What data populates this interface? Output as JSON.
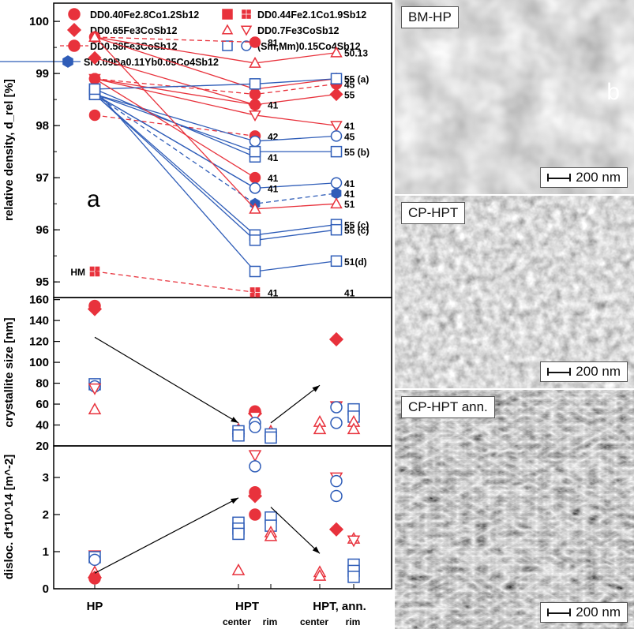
{
  "chart_data": [
    {
      "type": "line",
      "panel_label": "a",
      "ylabel": "relative density, d_rel [%]",
      "ylim": [
        94.7,
        100.35
      ],
      "yticks": [
        95,
        96,
        97,
        98,
        99,
        100
      ],
      "legend": [
        {
          "name": "DD0.40Fe2.8Co1.2Sb12",
          "color": "#e8323c",
          "marker": "circle",
          "dash": "solid",
          "filled": true
        },
        {
          "name": "DD0.65Fe3CoSb12",
          "color": "#e8323c",
          "marker": "diamond",
          "dash": "solid",
          "filled": true
        },
        {
          "name": "DD0.58Fe3CoSb12",
          "color": "#e8323c",
          "marker": "circle",
          "dash": "dashed",
          "filled": true
        },
        {
          "name": "Sr0.09Ba0.11Yb0.05Co4Sb12",
          "color": "#2f5db8",
          "marker": "hexagon",
          "dash": "solid",
          "filled": true
        },
        {
          "name": "DD0.44Fe2.1Co1.9Sb12",
          "color": "#e8323c",
          "marker": "square-quad",
          "dash": "solid",
          "filled": true
        },
        {
          "name": "DD0.7Fe3CoSb12",
          "color": "#e8323c",
          "marker": "triangle-up/down",
          "dash": "dashed",
          "filled": false
        },
        {
          "name": "(Sm,Mm)0.15Co4Sb12",
          "color": "#2f5db8",
          "marker": "square/circle",
          "dash": "solid",
          "filled": false
        }
      ],
      "series": [
        {
          "hp": 99.7,
          "center": 99.6,
          "rim": null,
          "color": "#e8323c",
          "dash": "dashed",
          "marker": "circle",
          "filled": true,
          "label": "81"
        },
        {
          "hp": 99.7,
          "center": 99.2,
          "rim": 99.4,
          "color": "#e8323c",
          "dash": "solid",
          "marker": "triangle-up",
          "filled": false,
          "label": "50.13"
        },
        {
          "hp": 99.7,
          "center": 98.7,
          "rim": 98.9,
          "color": "#e8323c",
          "dash": "solid",
          "marker": "triangle-up",
          "filled": false,
          "label": "55"
        },
        {
          "hp": 98.9,
          "center": 98.6,
          "rim": 98.8,
          "color": "#e8323c",
          "dash": "dashed",
          "marker": "circle",
          "filled": true,
          "label": "45"
        },
        {
          "hp": 99.3,
          "center": 98.4,
          "rim": 98.6,
          "color": "#e8323c",
          "dash": "solid",
          "marker": "diamond",
          "filled": true,
          "label": "55"
        },
        {
          "hp": 98.9,
          "center": 98.4,
          "rim": null,
          "color": "#e8323c",
          "dash": "solid",
          "marker": "circle",
          "filled": true,
          "label": "41"
        },
        {
          "hp": 98.2,
          "center": 97.8,
          "rim": null,
          "color": "#e8323c",
          "dash": "dashed",
          "marker": "circle",
          "filled": true,
          "label": "42"
        },
        {
          "hp": 98.9,
          "center": 98.2,
          "rim": 98.0,
          "color": "#e8323c",
          "dash": "solid",
          "marker": "triangle-down",
          "filled": false,
          "label": "41"
        },
        {
          "hp": 98.6,
          "center": 97.7,
          "rim": 97.8,
          "color": "#2f5db8",
          "dash": "solid",
          "marker": "circle",
          "filled": false,
          "label": "45"
        },
        {
          "hp": 98.7,
          "center": 97.4,
          "rim": null,
          "color": "#2f5db8",
          "dash": "solid",
          "marker": "square",
          "filled": false,
          "label": "41"
        },
        {
          "hp": 98.6,
          "center": 97.5,
          "rim": 97.5,
          "color": "#2f5db8",
          "dash": "solid",
          "marker": "square",
          "filled": false,
          "label": "55 (b)"
        },
        {
          "hp": 98.7,
          "center": 98.8,
          "rim": 98.9,
          "color": "#2f5db8",
          "dash": "solid",
          "marker": "square",
          "filled": false,
          "label": "55 (a)"
        },
        {
          "hp": 98.9,
          "center": 97.0,
          "rim": null,
          "color": "#e8323c",
          "dash": "solid",
          "marker": "circle",
          "filled": true,
          "label": "41"
        },
        {
          "hp": 98.6,
          "center": 96.8,
          "rim": 96.9,
          "color": "#2f5db8",
          "dash": "solid",
          "marker": "circle",
          "filled": false,
          "label": "41"
        },
        {
          "hp": 98.6,
          "center": 96.8,
          "rim": null,
          "color": "#2f5db8",
          "dash": "solid",
          "marker": "circle",
          "filled": false,
          "label": "41"
        },
        {
          "hp": 98.6,
          "center": 96.5,
          "rim": 96.7,
          "color": "#2f5db8",
          "dash": "dashed",
          "marker": "hexagon",
          "filled": true,
          "label": "41"
        },
        {
          "hp": 99.7,
          "center": 96.4,
          "rim": 96.5,
          "color": "#e8323c",
          "dash": "solid",
          "marker": "triangle-up",
          "filled": false,
          "label": "51"
        },
        {
          "hp": 98.6,
          "center": 95.9,
          "rim": 96.1,
          "color": "#2f5db8",
          "dash": "solid",
          "marker": "square",
          "filled": false,
          "label": "55 (c)"
        },
        {
          "hp": 98.6,
          "center": 95.8,
          "rim": 96.0,
          "color": "#2f5db8",
          "dash": "solid",
          "marker": "square",
          "filled": false,
          "label": "55 (c)"
        },
        {
          "hp": 98.7,
          "center": 95.2,
          "rim": 95.4,
          "color": "#2f5db8",
          "dash": "solid",
          "marker": "square",
          "filled": false,
          "label": "51(d)"
        },
        {
          "hp": 95.2,
          "center": 94.8,
          "rim": null,
          "color": "#e8323c",
          "dash": "dashed",
          "marker": "square-quad",
          "filled": true,
          "label": "41",
          "hp_label": "HM"
        }
      ],
      "rim_only_labels": [
        {
          "label": "41",
          "y": 94.8
        }
      ]
    },
    {
      "type": "scatter",
      "ylabel": "crystallite size [nm]",
      "ylim": [
        20,
        162
      ],
      "yticks": [
        20,
        40,
        60,
        80,
        100,
        120,
        140,
        160
      ],
      "points": [
        {
          "x": "HP",
          "y": 154,
          "marker": "circle",
          "color": "#e8323c",
          "filled": true
        },
        {
          "x": "HP",
          "y": 151,
          "marker": "diamond",
          "color": "#e8323c",
          "filled": true
        },
        {
          "x": "HP",
          "y": 79,
          "marker": "square",
          "color": "#2f5db8",
          "filled": false
        },
        {
          "x": "HP",
          "y": 77,
          "marker": "circle",
          "color": "#2f5db8",
          "filled": false
        },
        {
          "x": "HP",
          "y": 75,
          "marker": "triangle-down",
          "color": "#e8323c",
          "filled": false
        },
        {
          "x": "HP",
          "y": 55,
          "marker": "triangle-up",
          "color": "#e8323c",
          "filled": false
        },
        {
          "x": "HPT center",
          "y": 36,
          "marker": "triangle-up",
          "color": "#e8323c",
          "filled": false
        },
        {
          "x": "HPT center",
          "y": 34,
          "marker": "square",
          "color": "#2f5db8",
          "filled": false
        },
        {
          "x": "HPT center",
          "y": 30,
          "marker": "square",
          "color": "#2f5db8",
          "filled": false
        },
        {
          "x": "HPT mid",
          "y": 53,
          "marker": "circle",
          "color": "#e8323c",
          "filled": true
        },
        {
          "x": "HPT mid",
          "y": 51,
          "marker": "diamond",
          "color": "#e8323c",
          "filled": true
        },
        {
          "x": "HPT mid",
          "y": 48,
          "marker": "triangle-down",
          "color": "#e8323c",
          "filled": false
        },
        {
          "x": "HPT mid",
          "y": 42,
          "marker": "circle",
          "color": "#2f5db8",
          "filled": false
        },
        {
          "x": "HPT mid",
          "y": 38,
          "marker": "circle",
          "color": "#2f5db8",
          "filled": false
        },
        {
          "x": "HPT rim",
          "y": 34,
          "marker": "triangle-up",
          "color": "#e8323c",
          "filled": false
        },
        {
          "x": "HPT rim",
          "y": 31,
          "marker": "square",
          "color": "#2f5db8",
          "filled": false
        },
        {
          "x": "HPT rim",
          "y": 28,
          "marker": "square",
          "color": "#2f5db8",
          "filled": false
        },
        {
          "x": "ann center",
          "y": 43,
          "marker": "triangle-up",
          "color": "#e8323c",
          "filled": false
        },
        {
          "x": "ann center",
          "y": 36,
          "marker": "triangle-up",
          "color": "#e8323c",
          "filled": false
        },
        {
          "x": "ann mid",
          "y": 122,
          "marker": "diamond",
          "color": "#e8323c",
          "filled": true
        },
        {
          "x": "ann mid",
          "y": 58,
          "marker": "triangle-down",
          "color": "#e8323c",
          "filled": false
        },
        {
          "x": "ann mid",
          "y": 57,
          "marker": "circle",
          "color": "#2f5db8",
          "filled": false
        },
        {
          "x": "ann mid",
          "y": 42,
          "marker": "circle",
          "color": "#2f5db8",
          "filled": false
        },
        {
          "x": "ann rim",
          "y": 55,
          "marker": "square",
          "color": "#2f5db8",
          "filled": false
        },
        {
          "x": "ann rim",
          "y": 48,
          "marker": "square",
          "color": "#2f5db8",
          "filled": false
        },
        {
          "x": "ann rim",
          "y": 43,
          "marker": "triangle-up",
          "color": "#e8323c",
          "filled": false
        },
        {
          "x": "ann rim",
          "y": 36,
          "marker": "triangle-up",
          "color": "#e8323c",
          "filled": false
        }
      ],
      "arrows": [
        {
          "from": [
            "HP",
            124
          ],
          "to": [
            "HPT center",
            42
          ]
        },
        {
          "from": [
            "HPT rim",
            42
          ],
          "to": [
            "ann center",
            78
          ]
        }
      ]
    },
    {
      "type": "scatter",
      "ylabel": "disloc. d*10^14 [m^-2]",
      "ylim": [
        0,
        3.85
      ],
      "yticks": [
        0,
        1,
        2,
        3
      ],
      "points": [
        {
          "x": "HP",
          "y": 0.9,
          "marker": "triangle-down",
          "color": "#e8323c",
          "filled": false
        },
        {
          "x": "HP",
          "y": 0.85,
          "marker": "square",
          "color": "#2f5db8",
          "filled": false
        },
        {
          "x": "HP",
          "y": 0.78,
          "marker": "circle",
          "color": "#2f5db8",
          "filled": false
        },
        {
          "x": "HP",
          "y": 0.45,
          "marker": "triangle-up",
          "color": "#e8323c",
          "filled": false
        },
        {
          "x": "HP",
          "y": 0.3,
          "marker": "diamond",
          "color": "#e8323c",
          "filled": true
        },
        {
          "x": "HP",
          "y": 0.28,
          "marker": "circle",
          "color": "#e8323c",
          "filled": true
        },
        {
          "x": "HPT center",
          "y": 1.78,
          "marker": "square",
          "color": "#2f5db8",
          "filled": false
        },
        {
          "x": "HPT center",
          "y": 1.62,
          "marker": "square",
          "color": "#2f5db8",
          "filled": false
        },
        {
          "x": "HPT center",
          "y": 1.48,
          "marker": "square",
          "color": "#2f5db8",
          "filled": false
        },
        {
          "x": "HPT center",
          "y": 0.5,
          "marker": "triangle-up",
          "color": "#e8323c",
          "filled": false
        },
        {
          "x": "HPT mid",
          "y": 3.6,
          "marker": "triangle-down",
          "color": "#e8323c",
          "filled": false
        },
        {
          "x": "HPT mid",
          "y": 3.3,
          "marker": "circle",
          "color": "#2f5db8",
          "filled": false
        },
        {
          "x": "HPT mid",
          "y": 2.6,
          "marker": "circle",
          "color": "#e8323c",
          "filled": true
        },
        {
          "x": "HPT mid",
          "y": 2.5,
          "marker": "diamond",
          "color": "#e8323c",
          "filled": true
        },
        {
          "x": "HPT mid",
          "y": 2.0,
          "marker": "circle",
          "color": "#e8323c",
          "filled": true
        },
        {
          "x": "HPT rim",
          "y": 1.92,
          "marker": "square",
          "color": "#2f5db8",
          "filled": false
        },
        {
          "x": "HPT rim",
          "y": 1.7,
          "marker": "square",
          "color": "#2f5db8",
          "filled": false
        },
        {
          "x": "HPT rim",
          "y": 1.52,
          "marker": "triangle-up",
          "color": "#e8323c",
          "filled": false
        },
        {
          "x": "HPT rim",
          "y": 1.42,
          "marker": "triangle-up",
          "color": "#e8323c",
          "filled": false
        },
        {
          "x": "ann center",
          "y": 0.45,
          "marker": "triangle-up",
          "color": "#e8323c",
          "filled": false
        },
        {
          "x": "ann center",
          "y": 0.35,
          "marker": "triangle-up",
          "color": "#e8323c",
          "filled": false
        },
        {
          "x": "ann mid",
          "y": 3.0,
          "marker": "triangle-down",
          "color": "#e8323c",
          "filled": false
        },
        {
          "x": "ann mid",
          "y": 2.9,
          "marker": "circle",
          "color": "#2f5db8",
          "filled": false
        },
        {
          "x": "ann mid",
          "y": 2.5,
          "marker": "circle",
          "color": "#2f5db8",
          "filled": false
        },
        {
          "x": "ann mid",
          "y": 1.6,
          "marker": "diamond",
          "color": "#e8323c",
          "filled": true
        },
        {
          "x": "ann rim",
          "y": 1.35,
          "marker": "triangle-up",
          "color": "#e8323c",
          "filled": false
        },
        {
          "x": "ann rim",
          "y": 1.3,
          "marker": "triangle-down",
          "color": "#e8323c",
          "filled": false
        },
        {
          "x": "ann rim",
          "y": 0.65,
          "marker": "square",
          "color": "#2f5db8",
          "filled": false
        },
        {
          "x": "ann rim",
          "y": 0.48,
          "marker": "square",
          "color": "#2f5db8",
          "filled": false
        },
        {
          "x": "ann rim",
          "y": 0.32,
          "marker": "square",
          "color": "#2f5db8",
          "filled": false
        }
      ],
      "arrows": [
        {
          "from": [
            "HP",
            0.42
          ],
          "to": [
            "HPT center",
            2.45
          ]
        },
        {
          "from": [
            "HPT rim",
            2.2
          ],
          "to": [
            "ann center",
            0.95
          ]
        }
      ]
    }
  ],
  "x_axis": {
    "groups": [
      "HP",
      "HPT",
      "HPT, ann."
    ],
    "sublabels": [
      "center",
      "rim",
      "center",
      "rim"
    ]
  },
  "micrographs": {
    "panel_label": "b",
    "images": [
      {
        "label": "BM-HP",
        "scale": "200 nm"
      },
      {
        "label": "CP-HPT",
        "scale": "200 nm"
      },
      {
        "label": "CP-HPT ann.",
        "scale": "200 nm"
      }
    ]
  },
  "colors": {
    "red": "#e8323c",
    "blue": "#2f5db8",
    "axis": "#000000"
  }
}
